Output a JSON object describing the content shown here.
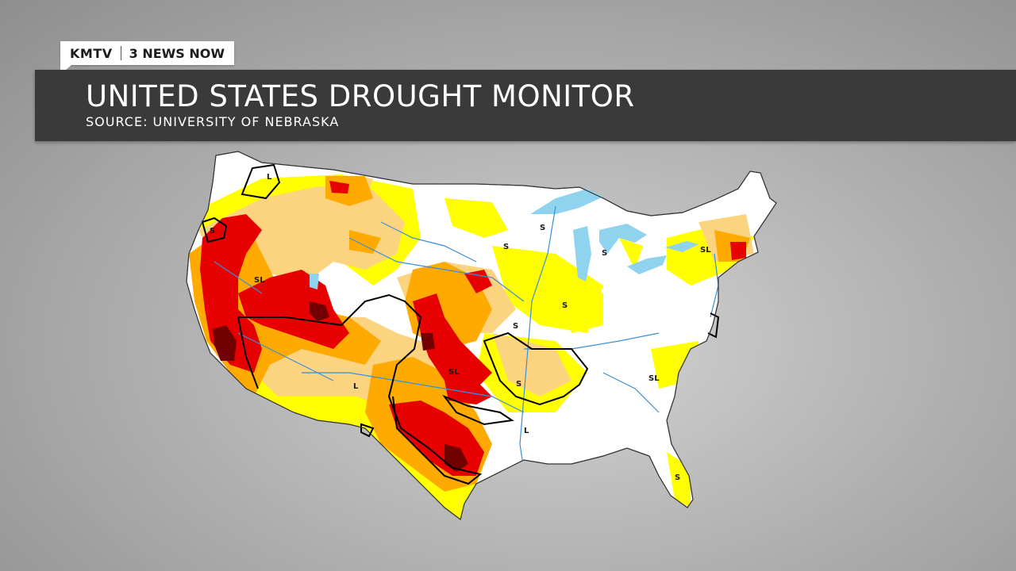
{
  "brand": {
    "station": "KMTV",
    "show": "3 NEWS NOW"
  },
  "header": {
    "title": "UNITED STATES DROUGHT MONITOR",
    "subtitle": "SOURCE: UNIVERSITY OF NEBRASKA"
  },
  "map": {
    "colors": {
      "none": "#ffffff",
      "D0": "#ffff00",
      "D1": "#fcd37f",
      "D2": "#ffaa00",
      "D3": "#e60000",
      "D4": "#730000",
      "water": "#8fd3ef",
      "rivers": "#3a8fd8",
      "boundary": "#000000"
    },
    "impact_labels": [
      "L",
      "SL",
      "S",
      "S",
      "S",
      "S",
      "S",
      "SL",
      "L",
      "SL",
      "S",
      "L",
      "SL",
      "S",
      "S"
    ]
  }
}
